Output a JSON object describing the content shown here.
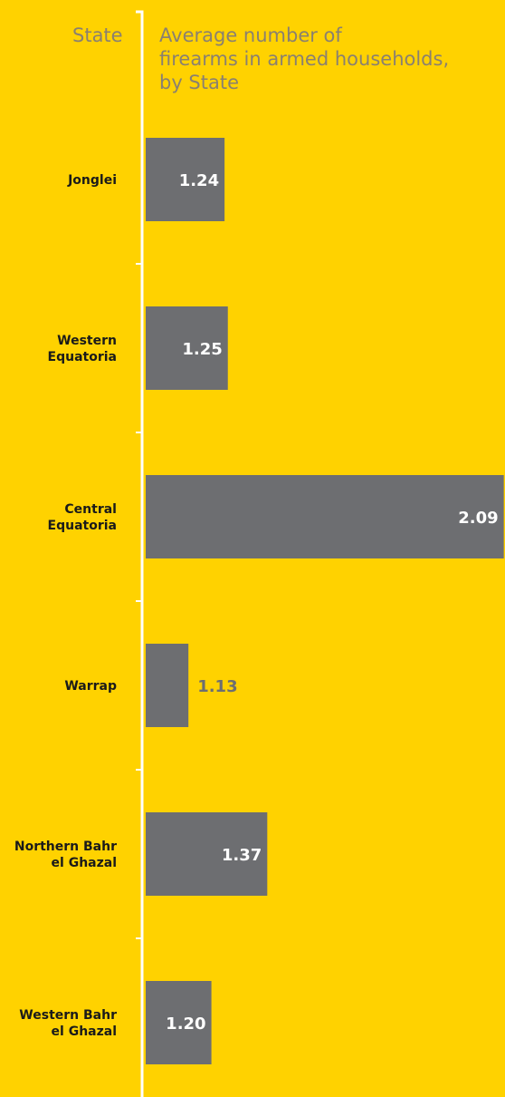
{
  "header": {
    "category_heading": "State",
    "title_lines": [
      "Average number of",
      "firearms in armed households,",
      "by State"
    ]
  },
  "chart_data": {
    "type": "bar",
    "orientation": "horizontal",
    "title": "Average number of firearms in armed households, by State",
    "categories": [
      [
        "Jonglei"
      ],
      [
        "Western",
        "Equatoria"
      ],
      [
        "Central",
        "Equatoria"
      ],
      [
        "Warrap"
      ],
      [
        "Northern Bahr",
        "el Ghazal"
      ],
      [
        "Western Bahr",
        "el Ghazal"
      ]
    ],
    "values": [
      1.24,
      1.25,
      2.09,
      1.13,
      1.37,
      1.2
    ],
    "value_labels": [
      "1.24",
      "1.25",
      "2.09",
      "1.13",
      "1.37",
      "1.20"
    ],
    "baseline": 1.0
  },
  "colors": {
    "background": "#FFD200",
    "bar": "#6D6E71",
    "axis": "#FFFFFF",
    "label_inside": "#FFFFFF",
    "label_outside": "#6D6E71",
    "header_text": "#8A8070"
  }
}
